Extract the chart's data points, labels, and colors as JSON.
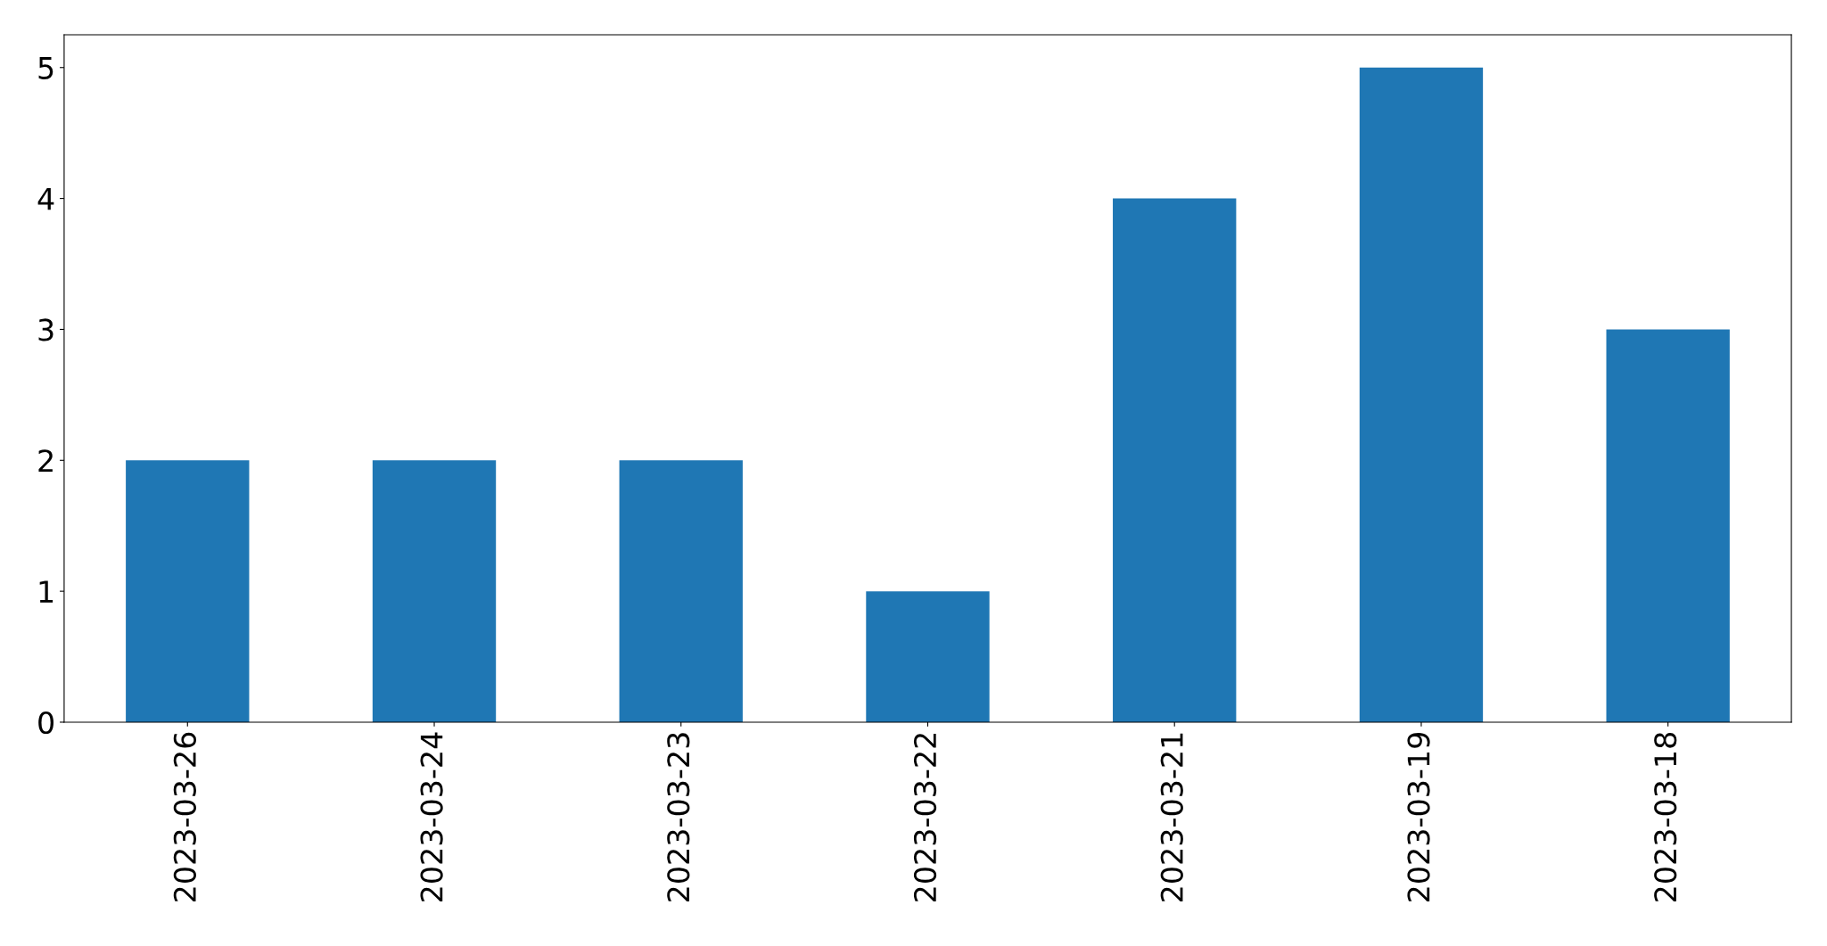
{
  "chart_data": {
    "type": "bar",
    "categories": [
      "2023-03-26",
      "2023-03-24",
      "2023-03-23",
      "2023-03-22",
      "2023-03-21",
      "2023-03-19",
      "2023-03-18"
    ],
    "values": [
      2,
      2,
      2,
      1,
      4,
      5,
      3
    ],
    "color": "#1f77b4",
    "ylim": [
      0,
      5.25
    ],
    "yticks": [
      0,
      1,
      2,
      3,
      4,
      5
    ],
    "grid": false
  }
}
